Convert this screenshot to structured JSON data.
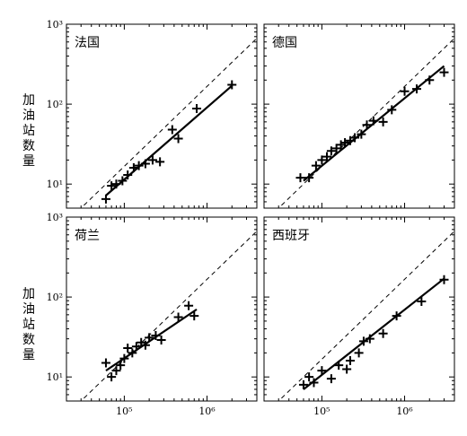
{
  "figure": {
    "ylabel": "加油站数量"
  },
  "chart_data": [
    {
      "type": "scatter",
      "title": "法国",
      "x_scale": "log",
      "y_scale": "log",
      "xlim": [
        20000,
        4000000
      ],
      "ylim": [
        5,
        1000
      ],
      "xticks": [],
      "yticks": [
        "10¹",
        "10²",
        "10³"
      ],
      "points": {
        "x": [
          60000,
          70000,
          80000,
          95000,
          110000,
          130000,
          150000,
          180000,
          220000,
          270000,
          380000,
          450000,
          750000,
          2000000
        ],
        "y": [
          6.5,
          9.5,
          10,
          11,
          13,
          16,
          17,
          18,
          20,
          19,
          48,
          37,
          88,
          175
        ]
      },
      "fit_line": {
        "x": [
          60000,
          2000000
        ],
        "y": [
          7.2,
          170
        ]
      },
      "reference_line": "dashed y ∝ x"
    },
    {
      "type": "scatter",
      "title": "德国",
      "x_scale": "log",
      "y_scale": "log",
      "xlim": [
        20000,
        4000000
      ],
      "ylim": [
        5,
        1000
      ],
      "xticks": [],
      "yticks": [],
      "points": {
        "x": [
          55000,
          70000,
          85000,
          100000,
          115000,
          130000,
          150000,
          170000,
          190000,
          220000,
          250000,
          300000,
          350000,
          420000,
          550000,
          700000,
          1000000,
          1400000,
          2000000,
          3000000
        ],
        "y": [
          12,
          12,
          17,
          20,
          22,
          26,
          28,
          31,
          33,
          35,
          38,
          42,
          55,
          62,
          60,
          85,
          145,
          155,
          200,
          250
        ]
      },
      "fit_line": {
        "x": [
          60000,
          3000000
        ],
        "y": [
          11,
          300
        ]
      },
      "reference_line": "dashed y ∝ x"
    },
    {
      "type": "scatter",
      "title": "荷兰",
      "x_scale": "log",
      "y_scale": "log",
      "xlim": [
        20000,
        4000000
      ],
      "ylim": [
        5,
        1000
      ],
      "xticks": [
        "10⁵",
        "10⁶"
      ],
      "yticks": [
        "10¹",
        "10²",
        "10³"
      ],
      "points": {
        "x": [
          60000,
          70000,
          80000,
          90000,
          100000,
          110000,
          125000,
          140000,
          160000,
          180000,
          200000,
          240000,
          280000,
          450000,
          600000,
          700000
        ],
        "y": [
          15,
          10,
          12,
          14,
          17,
          23,
          20,
          24,
          27,
          25,
          31,
          33,
          29,
          56,
          78,
          58
        ]
      },
      "fit_line": {
        "x": [
          60000,
          750000
        ],
        "y": [
          12,
          70
        ]
      },
      "reference_line": "dashed y ∝ x"
    },
    {
      "type": "scatter",
      "title": "西班牙",
      "x_scale": "log",
      "y_scale": "log",
      "xlim": [
        20000,
        4000000
      ],
      "ylim": [
        5,
        1000
      ],
      "xticks": [
        "10⁵",
        "10⁶"
      ],
      "yticks": [],
      "points": {
        "x": [
          60000,
          70000,
          80000,
          100000,
          130000,
          160000,
          200000,
          220000,
          280000,
          320000,
          380000,
          550000,
          800000,
          1600000,
          3000000
        ],
        "y": [
          8,
          10,
          8.5,
          12,
          9.5,
          14,
          12.5,
          16,
          20,
          28,
          30,
          35,
          58,
          88,
          165
        ]
      },
      "fit_line": {
        "x": [
          60000,
          3000000
        ],
        "y": [
          7,
          170
        ]
      },
      "reference_line": "dashed y ∝ x"
    }
  ]
}
